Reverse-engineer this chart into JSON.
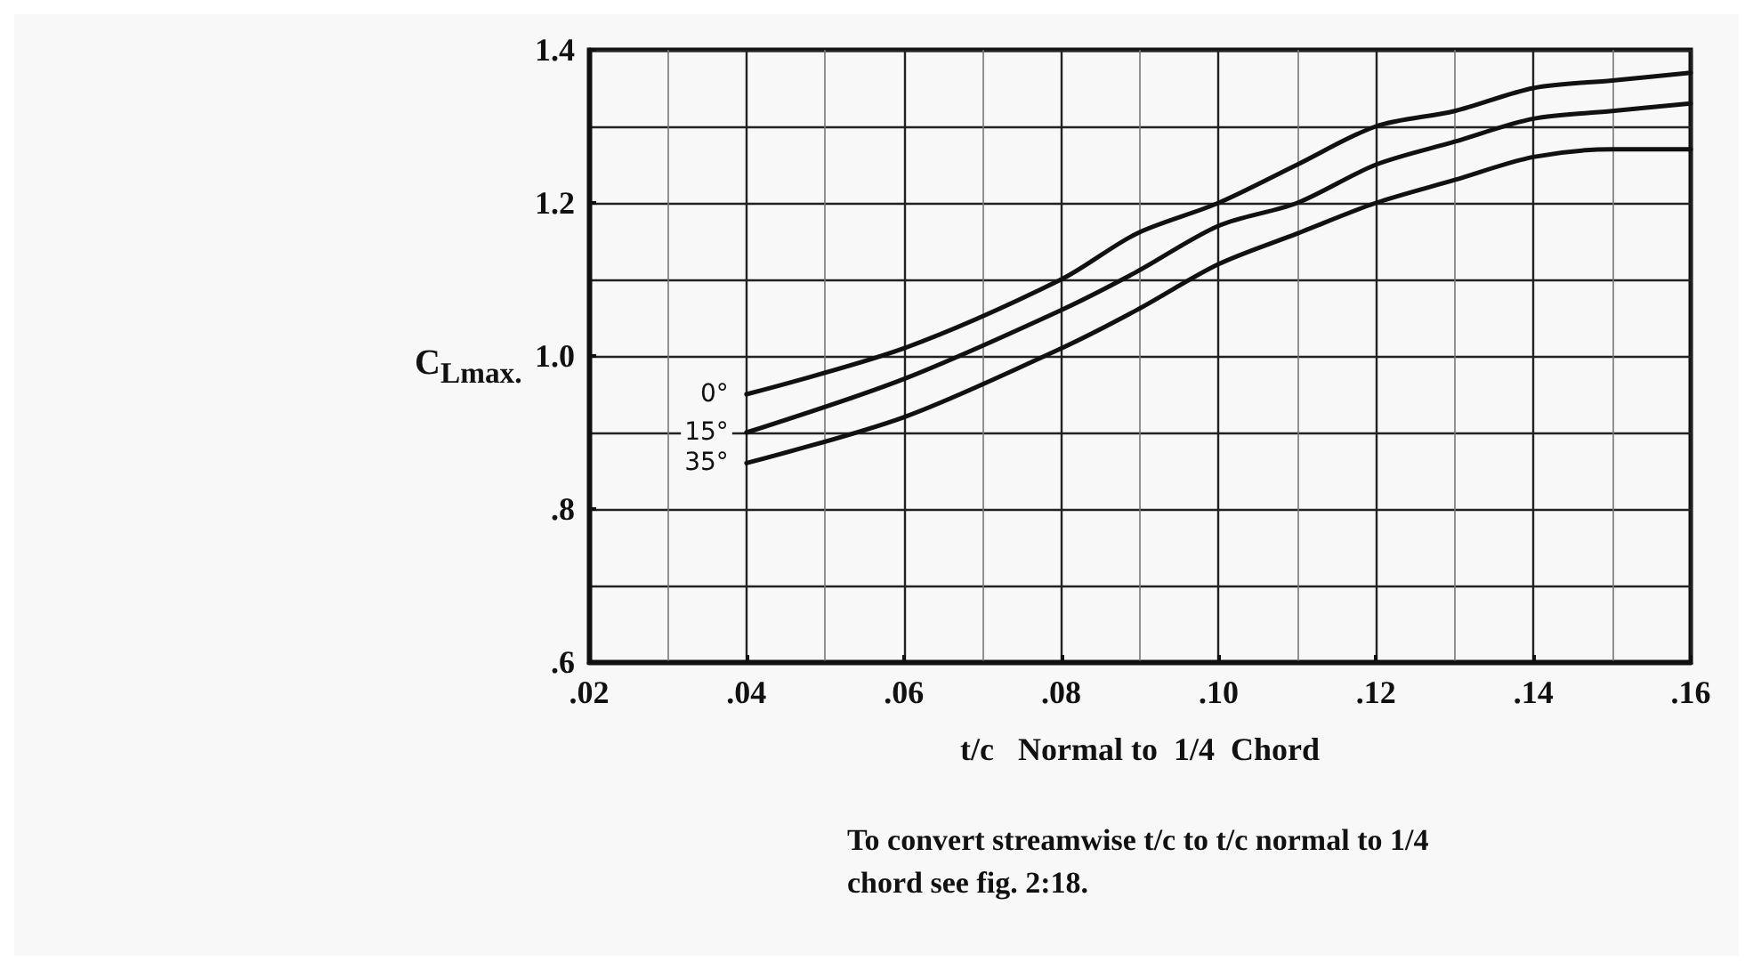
{
  "chart_data": {
    "type": "line",
    "xlabel": "t/c   Normal to  1/4  Chord",
    "ylabel": "C$_{L}$$_{max.}$",
    "annotations": [
      "To convert streamwise t/c to t/c normal to 1/4 chord see fig. 2:18."
    ],
    "series": [
      {
        "name": "0°",
        "color": "#111111",
        "x": [
          0.04,
          0.06,
          0.08,
          0.0896,
          0.1,
          0.11,
          0.12,
          0.13,
          0.14,
          0.15,
          0.16
        ],
        "values": [
          0.95,
          1.01,
          1.1,
          1.16,
          1.2,
          1.25,
          1.3,
          1.32,
          1.35,
          1.36,
          1.37
        ]
      },
      {
        "name": "15°",
        "color": "#111111",
        "x": [
          0.04,
          0.06,
          0.08,
          0.0896,
          0.1,
          0.11,
          0.12,
          0.13,
          0.14,
          0.15,
          0.16
        ],
        "values": [
          0.9,
          0.97,
          1.06,
          1.11,
          1.17,
          1.2,
          1.25,
          1.28,
          1.31,
          1.32,
          1.33
        ]
      },
      {
        "name": "35°",
        "color": "#111111",
        "x": [
          0.04,
          0.06,
          0.08,
          0.0896,
          0.1,
          0.11,
          0.12,
          0.13,
          0.14,
          0.15,
          0.16
        ],
        "values": [
          0.86,
          0.92,
          1.01,
          1.06,
          1.12,
          1.16,
          1.2,
          1.23,
          1.26,
          1.27,
          1.27
        ]
      }
    ],
    "xlim": [
      0.02,
      0.16
    ],
    "xticks": [
      {
        "value": 0.02,
        "label": ".02"
      },
      {
        "value": 0.04,
        "label": ".04"
      },
      {
        "value": 0.06,
        "label": ".06"
      },
      {
        "value": 0.08,
        "label": ".08"
      },
      {
        "value": 0.1,
        "label": ".10"
      },
      {
        "value": 0.12,
        "label": ".12"
      },
      {
        "value": 0.14,
        "label": ".14"
      },
      {
        "value": 0.16,
        "label": ".16"
      }
    ],
    "ylim": [
      0.6,
      1.4
    ],
    "yticks": [
      {
        "value": 0.6,
        "label": ".6"
      },
      {
        "value": 0.8,
        "label": ".8"
      },
      {
        "value": 1.0,
        "label": "1.0"
      },
      {
        "value": 1.2,
        "label": "1.2"
      },
      {
        "value": 1.4,
        "label": "1.4"
      }
    ],
    "grid": true,
    "marker": "none",
    "line_style": "solid",
    "legend": false
  }
}
